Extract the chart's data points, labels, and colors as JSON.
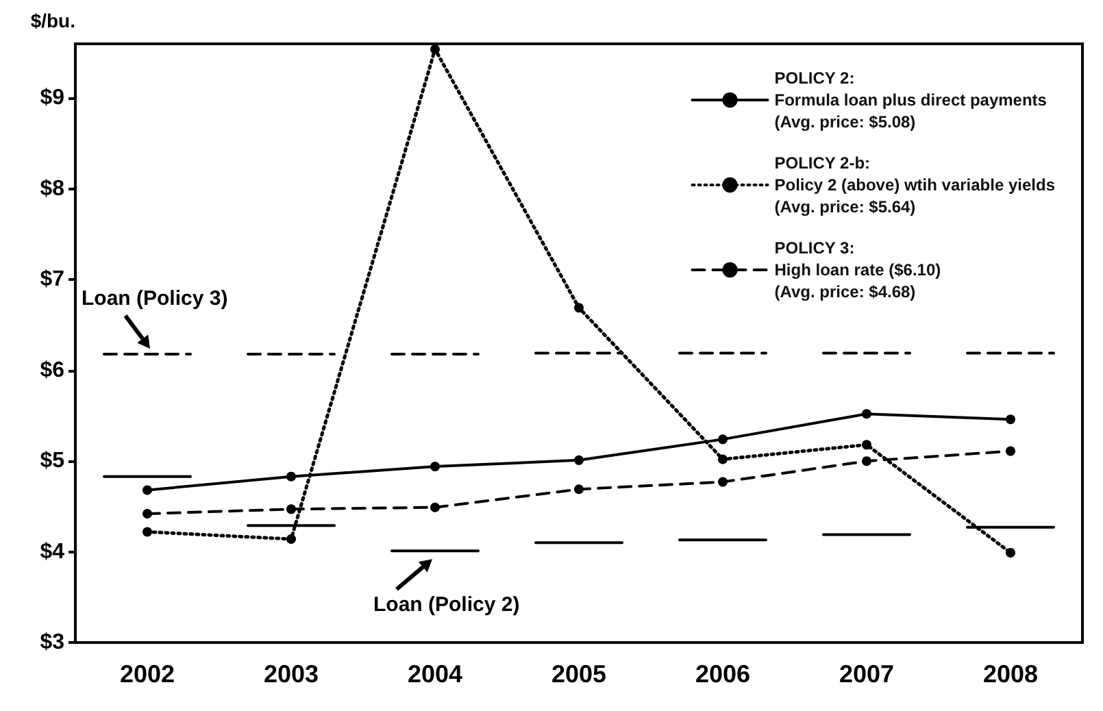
{
  "chart_data": {
    "type": "line",
    "ylabel": "$/bu.",
    "x": [
      2002,
      2003,
      2004,
      2005,
      2006,
      2007,
      2008
    ],
    "xlim": [
      2001.5,
      2008.5
    ],
    "xticks": [
      2002,
      2003,
      2004,
      2005,
      2006,
      2007,
      2008
    ],
    "ylim": [
      3,
      9.6
    ],
    "yticks": [
      {
        "value": 3,
        "label": "$3"
      },
      {
        "value": 4,
        "label": "$4"
      },
      {
        "value": 5,
        "label": "$5"
      },
      {
        "value": 6,
        "label": "$6"
      },
      {
        "value": 7,
        "label": "$7"
      },
      {
        "value": 8,
        "label": "$8"
      },
      {
        "value": 9,
        "label": "$9"
      }
    ],
    "grid": false,
    "legend": "top right",
    "series": [
      {
        "name": "POLICY 2:\nFormula loan plus direct payments\n(Avg. price: $5.08)",
        "color": "#000000",
        "line_style": "solid",
        "marker": "circle",
        "values": [
          4.68,
          4.83,
          4.94,
          5.01,
          5.24,
          5.52,
          5.46
        ]
      },
      {
        "name": "POLICY 2-b:\nPolicy 2 (above) wtih variable yields\n(Avg. price: $5.64)",
        "color": "#000000",
        "line_style": "dotted",
        "marker": "circle",
        "values": [
          4.22,
          4.14,
          9.54,
          6.69,
          5.02,
          5.18,
          3.99
        ]
      },
      {
        "name": "POLICY 3:\nHigh loan rate ($6.10)\n(Avg. price: $4.68)",
        "color": "#000000",
        "line_style": "dashed",
        "marker": "circle",
        "values": [
          4.42,
          4.47,
          4.49,
          4.69,
          4.77,
          5.0,
          5.11
        ]
      },
      {
        "color": "#000000",
        "line_style": "dashed",
        "marker": "none",
        "x": [
          2001.7,
          2002.3,
          2002.5,
          2002.7,
          2003.3,
          2003.5,
          2003.7,
          2004.3,
          2004.5,
          2004.7,
          2005.3,
          2005.5,
          2005.7,
          2006.3,
          2006.5,
          2006.7,
          2007.3,
          2007.5,
          2007.7,
          2008.3
        ],
        "values": [
          6.18,
          6.18,
          null,
          6.18,
          6.18,
          null,
          6.18,
          6.18,
          null,
          6.19,
          6.19,
          null,
          6.19,
          6.19,
          null,
          6.19,
          6.19,
          null,
          6.19,
          6.19
        ]
      },
      {
        "color": "#000000",
        "line_style": "solid",
        "marker": "none",
        "x": [
          2001.7,
          2002.3,
          2002.5,
          2002.7,
          2003.3,
          2003.5,
          2003.7,
          2004.3,
          2004.5,
          2004.7,
          2005.3,
          2005.5,
          2005.7,
          2006.3,
          2006.5,
          2006.7,
          2007.3,
          2007.5,
          2007.7,
          2008.3
        ],
        "values": [
          4.83,
          4.83,
          null,
          4.29,
          4.29,
          null,
          4.01,
          4.01,
          null,
          4.1,
          4.1,
          null,
          4.13,
          4.13,
          null,
          4.19,
          4.19,
          null,
          4.27,
          4.27
        ]
      }
    ],
    "annotations": [
      {
        "text": "Loan (Policy 3)",
        "x": 2002,
        "y": 6.18
      },
      {
        "text": "Loan (Policy 2)",
        "x": 2004,
        "y": 4.01
      }
    ]
  }
}
